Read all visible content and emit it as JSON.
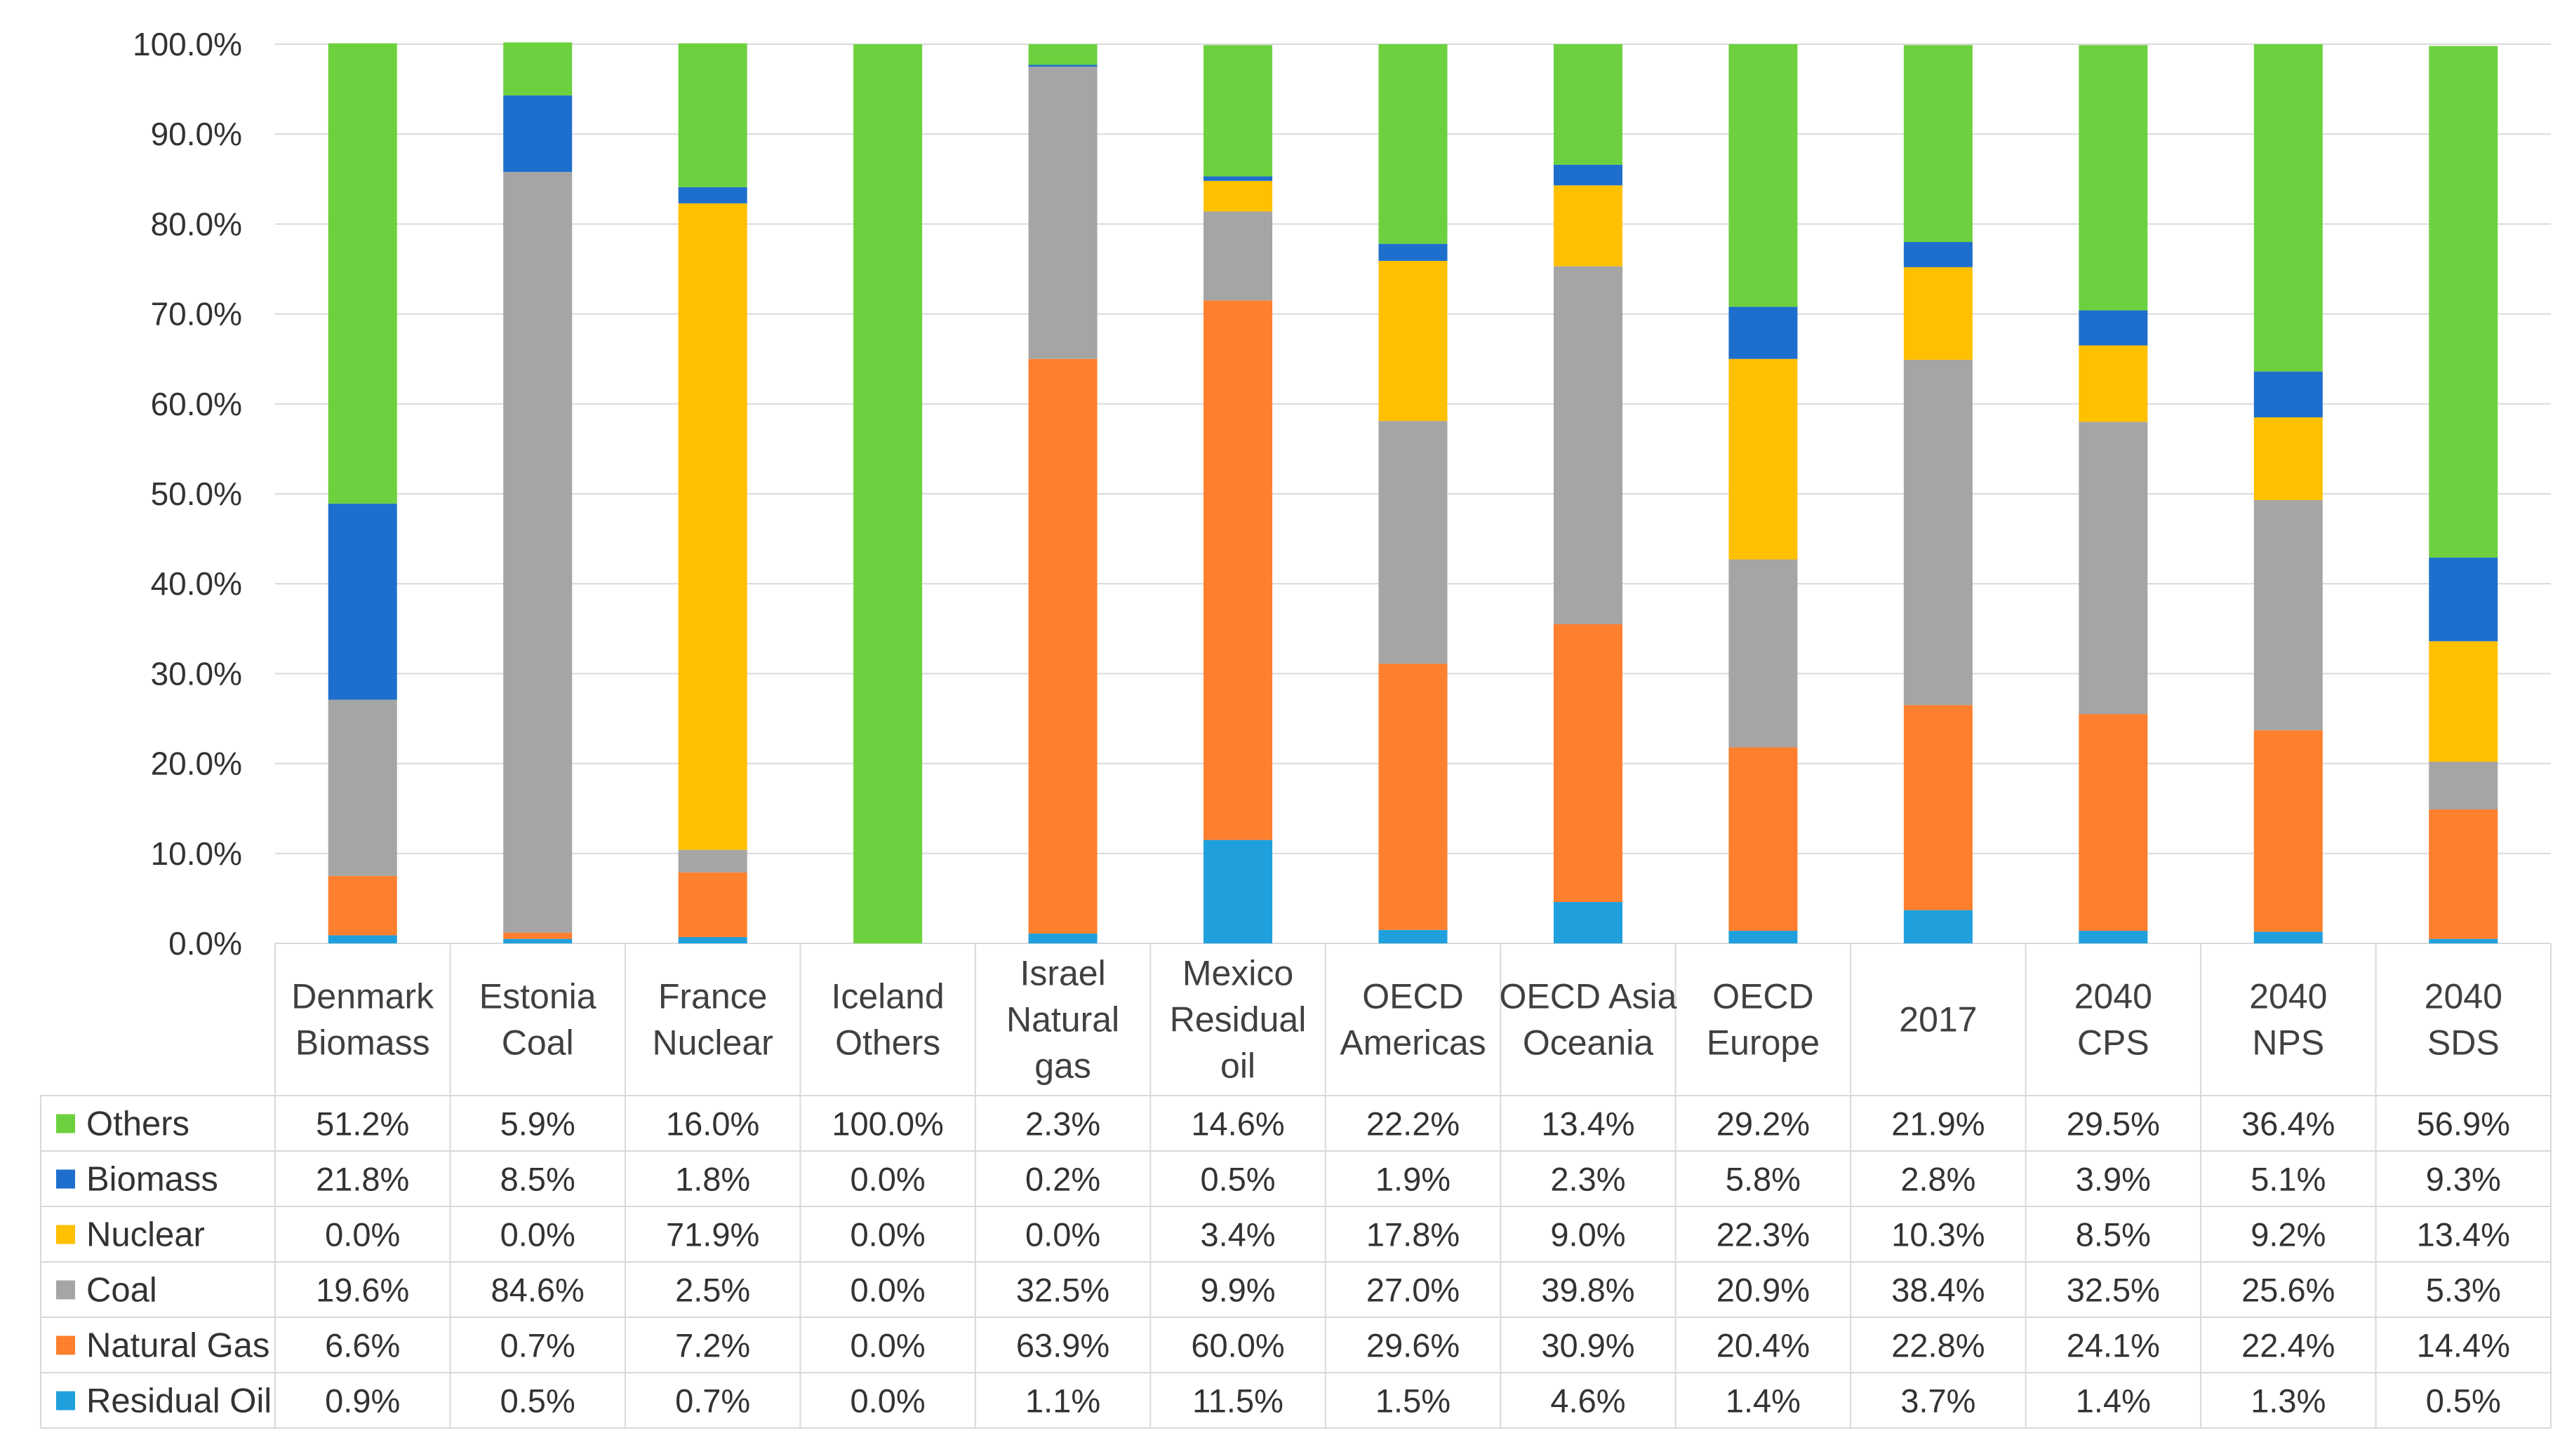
{
  "chart_data": {
    "type": "bar",
    "stacked": true,
    "title": "",
    "xlabel": "",
    "ylabel": "",
    "ylim": [
      0,
      100
    ],
    "y_ticks": [
      "0.0%",
      "10.0%",
      "20.0%",
      "30.0%",
      "40.0%",
      "50.0%",
      "60.0%",
      "70.0%",
      "80.0%",
      "90.0%",
      "100.0%"
    ],
    "legend_position": "bottom data table",
    "categories": [
      [
        "Denmark",
        "Biomass"
      ],
      [
        "Estonia",
        "Coal"
      ],
      [
        "France",
        "Nuclear"
      ],
      [
        "Iceland",
        "Others"
      ],
      [
        "Israel",
        "Natural",
        "gas"
      ],
      [
        "Mexico",
        "Residual",
        "oil"
      ],
      [
        "OECD",
        "Americas"
      ],
      [
        "OECD Asia",
        "Oceania"
      ],
      [
        "OECD",
        "Europe"
      ],
      [
        "2017"
      ],
      [
        "2040",
        "CPS"
      ],
      [
        "2040",
        "NPS"
      ],
      [
        "2040",
        "SDS"
      ]
    ],
    "series": [
      {
        "name": "Residual Oil",
        "color": "#1fa0dc",
        "values": [
          0.9,
          0.5,
          0.7,
          0.0,
          1.1,
          11.5,
          1.5,
          4.6,
          1.4,
          3.7,
          1.4,
          1.3,
          0.5
        ],
        "labels": [
          "0.9%",
          "0.5%",
          "0.7%",
          "0.0%",
          "1.1%",
          "11.5%",
          "1.5%",
          "4.6%",
          "1.4%",
          "3.7%",
          "1.4%",
          "1.3%",
          "0.5%"
        ]
      },
      {
        "name": "Natural Gas",
        "color": "#fe7f2d",
        "values": [
          6.6,
          0.7,
          7.2,
          0.0,
          63.9,
          60.0,
          29.6,
          30.9,
          20.4,
          22.8,
          24.1,
          22.4,
          14.4
        ],
        "labels": [
          "6.6%",
          "0.7%",
          "7.2%",
          "0.0%",
          "63.9%",
          "60.0%",
          "29.6%",
          "30.9%",
          "20.4%",
          "22.8%",
          "24.1%",
          "22.4%",
          "14.4%"
        ]
      },
      {
        "name": "Coal",
        "color": "#a5a5a5",
        "values": [
          19.6,
          84.6,
          2.5,
          0.0,
          32.5,
          9.9,
          27.0,
          39.8,
          20.9,
          38.4,
          32.5,
          25.6,
          5.3
        ],
        "labels": [
          "19.6%",
          "84.6%",
          "2.5%",
          "0.0%",
          "32.5%",
          "9.9%",
          "27.0%",
          "39.8%",
          "20.9%",
          "38.4%",
          "32.5%",
          "25.6%",
          "5.3%"
        ]
      },
      {
        "name": "Nuclear",
        "color": "#ffc000",
        "values": [
          0.0,
          0.0,
          71.9,
          0.0,
          0.0,
          3.4,
          17.8,
          9.0,
          22.3,
          10.3,
          8.5,
          9.2,
          13.4
        ],
        "labels": [
          "0.0%",
          "0.0%",
          "71.9%",
          "0.0%",
          "0.0%",
          "3.4%",
          "17.8%",
          "9.0%",
          "22.3%",
          "10.3%",
          "8.5%",
          "9.2%",
          "13.4%"
        ]
      },
      {
        "name": "Biomass",
        "color": "#1e6fcd",
        "values": [
          21.8,
          8.5,
          1.8,
          0.0,
          0.2,
          0.5,
          1.9,
          2.3,
          5.8,
          2.8,
          3.9,
          5.1,
          9.3
        ],
        "labels": [
          "21.8%",
          "8.5%",
          "1.8%",
          "0.0%",
          "0.2%",
          "0.5%",
          "1.9%",
          "2.3%",
          "5.8%",
          "2.8%",
          "3.9%",
          "5.1%",
          "9.3%"
        ]
      },
      {
        "name": "Others",
        "color": "#6dd13f",
        "values": [
          51.2,
          5.9,
          16.0,
          100.0,
          2.3,
          14.6,
          22.2,
          13.4,
          29.2,
          21.9,
          29.5,
          36.4,
          56.9
        ],
        "labels": [
          "51.2%",
          "5.9%",
          "16.0%",
          "100.0%",
          "2.3%",
          "14.6%",
          "22.2%",
          "13.4%",
          "29.2%",
          "21.9%",
          "29.5%",
          "36.4%",
          "56.9%"
        ]
      }
    ],
    "table_row_order": [
      "Others",
      "Biomass",
      "Nuclear",
      "Coal",
      "Natural Gas",
      "Residual Oil"
    ]
  },
  "colors": {
    "gridline": "#d9d9d9",
    "table_border": "#d9d9d9"
  }
}
